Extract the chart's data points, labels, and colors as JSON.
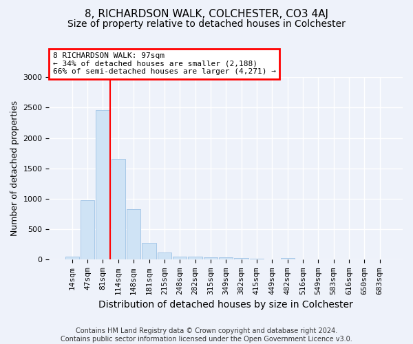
{
  "title": "8, RICHARDSON WALK, COLCHESTER, CO3 4AJ",
  "subtitle": "Size of property relative to detached houses in Colchester",
  "xlabel": "Distribution of detached houses by size in Colchester",
  "ylabel": "Number of detached properties",
  "bar_labels": [
    "14sqm",
    "47sqm",
    "81sqm",
    "114sqm",
    "148sqm",
    "181sqm",
    "215sqm",
    "248sqm",
    "282sqm",
    "315sqm",
    "349sqm",
    "382sqm",
    "415sqm",
    "449sqm",
    "482sqm",
    "516sqm",
    "549sqm",
    "583sqm",
    "616sqm",
    "650sqm",
    "683sqm"
  ],
  "bar_values": [
    55,
    980,
    2460,
    1650,
    830,
    275,
    115,
    55,
    50,
    35,
    35,
    30,
    20,
    5,
    30,
    3,
    3,
    2,
    2,
    2,
    2
  ],
  "bar_color": "#cfe3f5",
  "bar_edge_color": "#a8c8e8",
  "property_sqm": 97,
  "annotation_text": "8 RICHARDSON WALK: 97sqm\n← 34% of detached houses are smaller (2,188)\n66% of semi-detached houses are larger (4,271) →",
  "annotation_box_color": "white",
  "annotation_box_edge_color": "red",
  "vline_color": "red",
  "ylim": [
    0,
    3000
  ],
  "yticks": [
    0,
    500,
    1000,
    1500,
    2000,
    2500,
    3000
  ],
  "footer_line1": "Contains HM Land Registry data © Crown copyright and database right 2024.",
  "footer_line2": "Contains public sector information licensed under the Open Government Licence v3.0.",
  "background_color": "#eef2fa",
  "grid_color": "white",
  "title_fontsize": 11,
  "subtitle_fontsize": 10,
  "ylabel_fontsize": 9,
  "xlabel_fontsize": 10,
  "tick_fontsize": 8,
  "footer_fontsize": 7
}
